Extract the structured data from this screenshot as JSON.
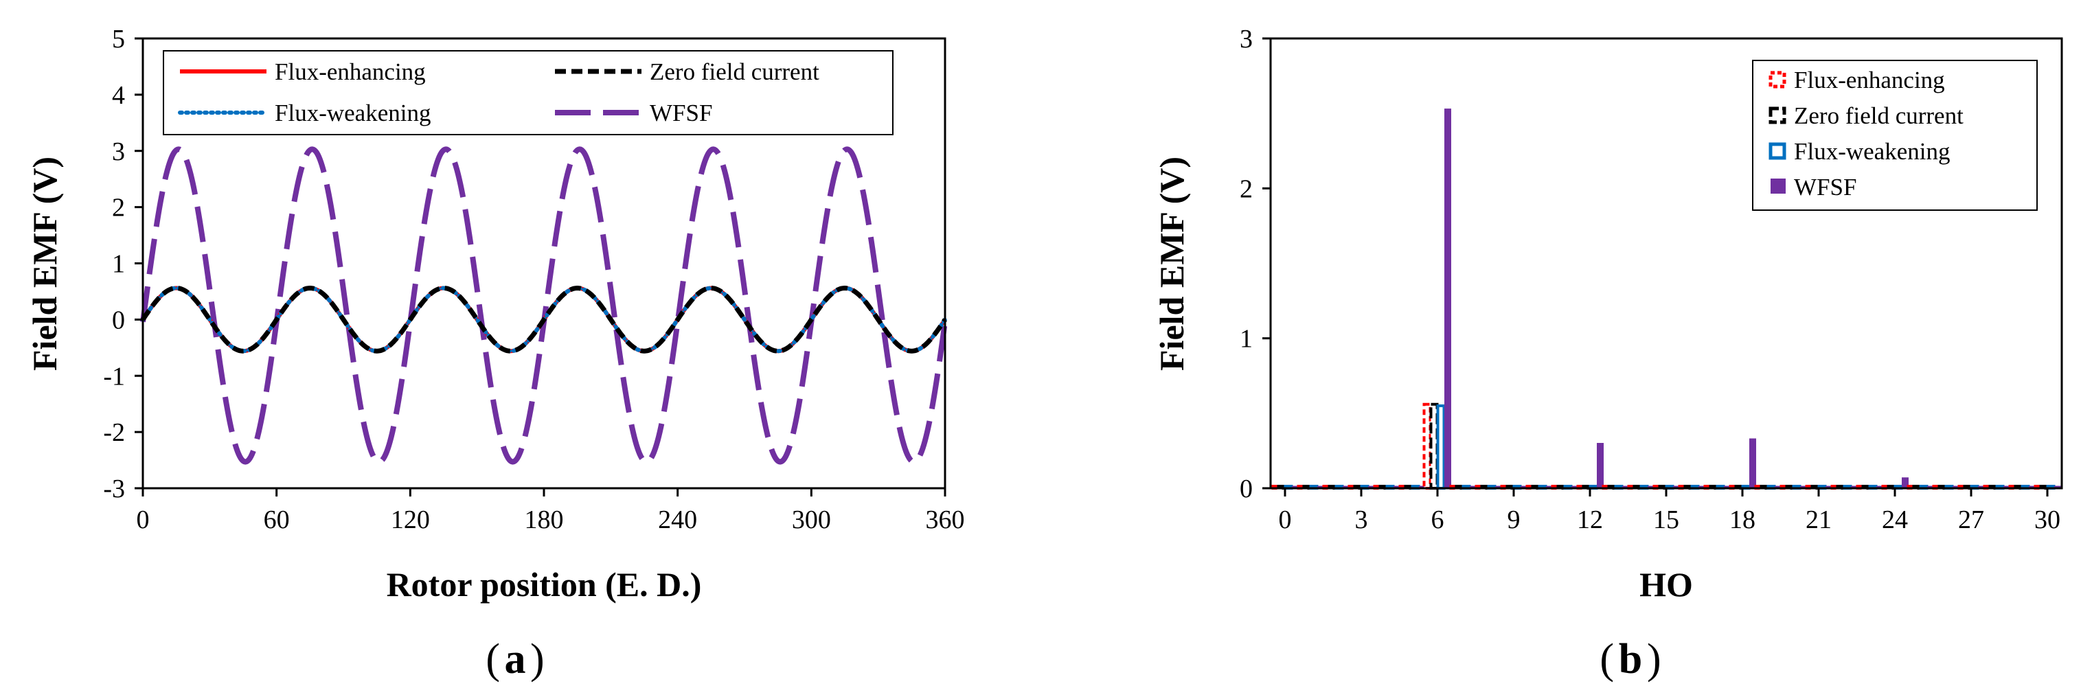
{
  "colors": {
    "flux_enhancing": "#ff0000",
    "zero_field_current": "#000000",
    "flux_weakening": "#0070c0",
    "wfsf": "#7030a0"
  },
  "chart_data": [
    {
      "panel_label_open": "(",
      "panel_label_letter": "a",
      "panel_label_close": ")",
      "type": "line",
      "xlabel": "Rotor position (E. D.)",
      "ylabel": "Field EMF (V)",
      "xlim": [
        0,
        360
      ],
      "ylim": [
        -3,
        5
      ],
      "xticks": [
        "0",
        "60",
        "120",
        "180",
        "240",
        "300",
        "360"
      ],
      "yticks": [
        "-3",
        "-2",
        "-1",
        "0",
        "1",
        "2",
        "3",
        "4",
        "5"
      ],
      "legend": [
        "Flux-enhancing",
        "Zero field current",
        "Flux-weakening",
        "WFSF"
      ],
      "series": [
        {
          "name": "Flux-enhancing",
          "style": "solid",
          "amplitude": 0.56,
          "phase_deg": 15,
          "cycles_per_360": 6
        },
        {
          "name": "Zero field current",
          "style": "dashed",
          "amplitude": 0.56,
          "phase_deg": 15,
          "cycles_per_360": 6
        },
        {
          "name": "Flux-weakening",
          "style": "dotted",
          "amplitude": 0.56,
          "phase_deg": 15,
          "cycles_per_360": 6
        },
        {
          "name": "WFSF",
          "style": "long-dash",
          "offset": 0.25,
          "amplitude": 2.78,
          "phase_deg": 16,
          "cycles_per_360": 6
        }
      ]
    },
    {
      "panel_label_open": "(",
      "panel_label_letter": "b",
      "panel_label_close": ")",
      "type": "bar",
      "xlabel": "HO",
      "ylabel": "Field EMF (V)",
      "xlim": [
        0,
        30
      ],
      "ylim": [
        0,
        3
      ],
      "xticks": [
        "0",
        "3",
        "6",
        "9",
        "12",
        "15",
        "18",
        "21",
        "24",
        "27",
        "30"
      ],
      "yticks": [
        "0",
        "1",
        "2",
        "3"
      ],
      "legend": [
        "Flux-enhancing",
        "Zero field current",
        "Flux-weakening",
        "WFSF"
      ],
      "harmonic_orders": [
        0,
        1,
        2,
        3,
        4,
        5,
        6,
        7,
        8,
        9,
        10,
        11,
        12,
        13,
        14,
        15,
        16,
        17,
        18,
        19,
        20,
        21,
        22,
        23,
        24,
        25,
        26,
        27,
        28,
        29,
        30
      ],
      "series": [
        {
          "name": "Flux-enhancing",
          "values": [
            0,
            0,
            0,
            0,
            0,
            0,
            0.56,
            0,
            0,
            0,
            0,
            0,
            0,
            0,
            0,
            0,
            0,
            0,
            0,
            0,
            0,
            0,
            0,
            0,
            0,
            0,
            0,
            0,
            0,
            0,
            0
          ]
        },
        {
          "name": "Zero field current",
          "values": [
            0,
            0,
            0,
            0,
            0,
            0,
            0.56,
            0,
            0,
            0,
            0,
            0,
            0,
            0,
            0,
            0,
            0,
            0,
            0,
            0,
            0,
            0,
            0,
            0,
            0,
            0,
            0,
            0,
            0,
            0,
            0
          ]
        },
        {
          "name": "Flux-weakening",
          "values": [
            0,
            0,
            0,
            0,
            0,
            0,
            0.55,
            0,
            0,
            0,
            0,
            0,
            0,
            0,
            0,
            0,
            0,
            0,
            0,
            0,
            0,
            0,
            0,
            0,
            0,
            0,
            0,
            0,
            0,
            0,
            0
          ]
        },
        {
          "name": "WFSF",
          "values": [
            0.01,
            0.01,
            0.01,
            0.01,
            0.01,
            0.01,
            2.53,
            0.01,
            0.01,
            0.01,
            0.01,
            0.01,
            0.3,
            0.01,
            0.01,
            0.01,
            0.01,
            0.01,
            0.33,
            0.01,
            0.01,
            0.01,
            0.01,
            0.01,
            0.07,
            0.01,
            0.01,
            0.01,
            0.01,
            0.01,
            0.01
          ]
        }
      ]
    }
  ]
}
